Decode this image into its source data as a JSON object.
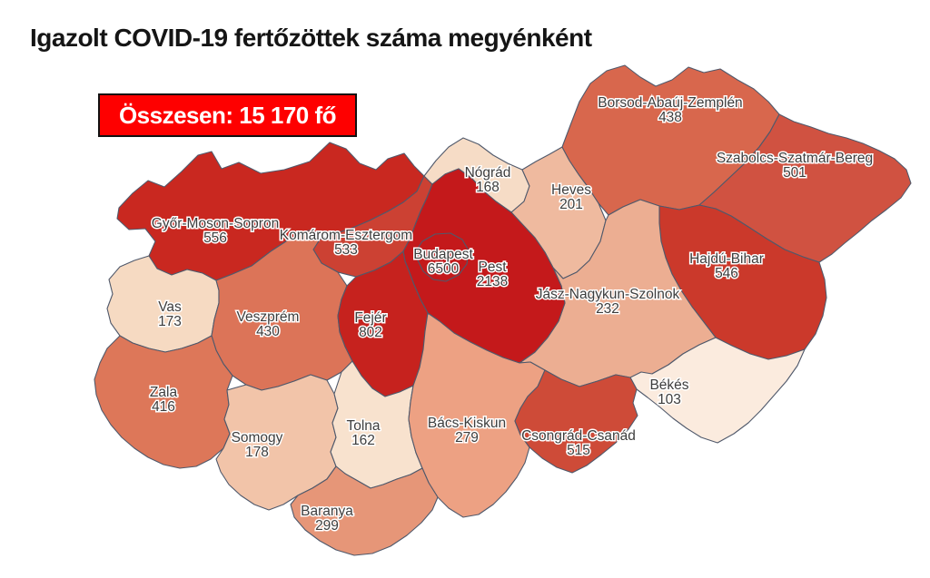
{
  "header": {
    "title": "Igazolt COVID-19 fertőzöttek száma megyénként"
  },
  "total_badge": {
    "label": "Összesen: 15 170 fő",
    "bg_color": "#FE0000",
    "text_color": "#FFFFFF",
    "border_color": "#111111"
  },
  "map": {
    "border_color": "#50596B",
    "background": "#FFFFFF",
    "label_color": "#3D3D3D"
  },
  "chart_data": {
    "type": "choropleth",
    "title": "Igazolt COVID-19 fertőzöttek száma megyénként",
    "total_value": 15170,
    "unit": "fő",
    "legend": "none",
    "color_scale": {
      "low": "#FBEBDE",
      "high": "#C4191B"
    },
    "regions": [
      {
        "id": "gyor-moson-sopron",
        "name": "Győr-Moson-Sopron",
        "value": 556,
        "color": "#C92820"
      },
      {
        "id": "komarom-esztergom",
        "name": "Komárom-Esztergom",
        "value": 533,
        "color": "#CC4133"
      },
      {
        "id": "nograd",
        "name": "Nógrád",
        "value": 168,
        "color": "#F6DCC6"
      },
      {
        "id": "heves",
        "name": "Heves",
        "value": 201,
        "color": "#EFBA9F"
      },
      {
        "id": "borsod-abauj-zemplen",
        "name": "Borsod-Abaúj-Zemplén",
        "value": 438,
        "color": "#D8674D"
      },
      {
        "id": "szabolcs-szatmar-bereg",
        "name": "Szabolcs-Szatmár-Bereg",
        "value": 501,
        "color": "#D05241"
      },
      {
        "id": "hajdu-bihar",
        "name": "Hajdú-Bihar",
        "value": 546,
        "color": "#CB392B"
      },
      {
        "id": "jasz-nagykun-szolnok",
        "name": "Jász-Nagykun-Szolnok",
        "value": 232,
        "color": "#ECAE92"
      },
      {
        "id": "pest",
        "name": "Pest",
        "value": 2138,
        "color": "#C4191B"
      },
      {
        "id": "budapest",
        "name": "Budapest",
        "value": 6500,
        "color": "#C4191B"
      },
      {
        "id": "vas",
        "name": "Vas",
        "value": 173,
        "color": "#F6DAC2"
      },
      {
        "id": "veszprem",
        "name": "Veszprém",
        "value": 430,
        "color": "#DC7458"
      },
      {
        "id": "fejer",
        "name": "Fejér",
        "value": 802,
        "color": "#C6221E"
      },
      {
        "id": "zala",
        "name": "Zala",
        "value": 416,
        "color": "#DD7759"
      },
      {
        "id": "somogy",
        "name": "Somogy",
        "value": 178,
        "color": "#F2C4A9"
      },
      {
        "id": "tolna",
        "name": "Tolna",
        "value": 162,
        "color": "#F8E2CE"
      },
      {
        "id": "bacs-kiskun",
        "name": "Bács-Kiskun",
        "value": 279,
        "color": "#EDA183"
      },
      {
        "id": "bekes",
        "name": "Békés",
        "value": 103,
        "color": "#FBEBDE"
      },
      {
        "id": "csongrad-csanad",
        "name": "Csongrád-Csanád",
        "value": 515,
        "color": "#CE4B38"
      },
      {
        "id": "baranya",
        "name": "Baranya",
        "value": 299,
        "color": "#E69678"
      }
    ]
  }
}
